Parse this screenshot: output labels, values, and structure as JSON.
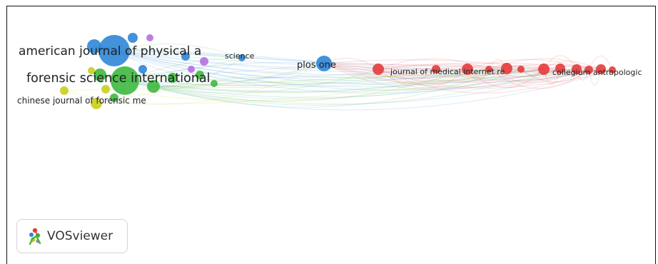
{
  "labels": {
    "ajpa": "american journal of physical a",
    "fsi": "forensic science international",
    "cjfm": "chinese journal of forensic me",
    "science": "science",
    "plos": "plos one",
    "jmir": "journal of medical internet re",
    "coll": "collegium antropologic"
  },
  "cluster_colors": {
    "blue": "#2e86d8",
    "green": "#3fb83f",
    "yellow": "#c8cf1c",
    "purple": "#b56fe0",
    "red": "#e43b3b"
  },
  "logo": {
    "text": "VOSviewer",
    "icon": "vosviewer-logo-icon"
  }
}
